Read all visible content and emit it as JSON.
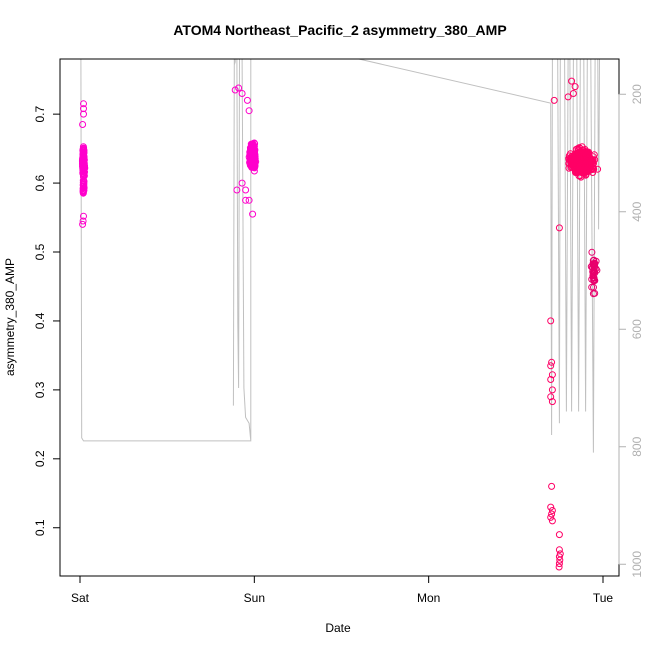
{
  "chart_data": {
    "type": "scatter",
    "title": "ATOM4 Northeast_Pacific_2 asymmetry_380_AMP",
    "xlabel": "Date",
    "ylabel": "asymmetry_380_AMP",
    "x_ticks": [
      "Sat",
      "Sun",
      "Mon",
      "Tue"
    ],
    "x_range_days": [
      0,
      3
    ],
    "y_ticks": [
      "0.1",
      "0.2",
      "0.3",
      "0.4",
      "0.5",
      "0.6",
      "0.7"
    ],
    "ylim": [
      0.03,
      0.78
    ],
    "y2_ticks": [
      "200",
      "400",
      "600",
      "800",
      "1000"
    ],
    "y2lim": [
      1020,
      140
    ],
    "y2_reversed": true,
    "grid": false,
    "colors": {
      "early_points": "#ff00cc",
      "late_points": "#ff0066",
      "outlier_points": "#e8006c",
      "depth_line": "#c0c0c0",
      "axis": "#000000",
      "right_axis": "#b0b0b0"
    },
    "series": [
      {
        "clusters": [
          {
            "x_center": 0.02,
            "x_spread": 0.012,
            "y_center": 0.63,
            "y_spread": 0.035,
            "count": 160,
            "color_key": "early_points"
          },
          {
            "x_center": 0.02,
            "x_spread": 0.008,
            "y_center": 0.595,
            "y_spread": 0.025,
            "count": 25,
            "color_key": "early_points"
          },
          {
            "x_center": 0.99,
            "x_spread": 0.03,
            "y_center": 0.64,
            "y_spread": 0.03,
            "count": 400,
            "color_key": "early_points"
          },
          {
            "x_center": 2.88,
            "x_spread": 0.12,
            "y_center": 0.63,
            "y_spread": 0.03,
            "count": 800,
            "color_key": "late_points"
          },
          {
            "x_center": 2.95,
            "x_spread": 0.03,
            "y_center": 0.47,
            "y_spread": 0.05,
            "count": 40,
            "color_key": "outlier_points"
          }
        ],
        "points": [
          {
            "x": 0.02,
            "y": 0.715
          },
          {
            "x": 0.02,
            "y": 0.708
          },
          {
            "x": 0.02,
            "y": 0.7
          },
          {
            "x": 0.015,
            "y": 0.685
          },
          {
            "x": 0.015,
            "y": 0.54
          },
          {
            "x": 0.018,
            "y": 0.545
          },
          {
            "x": 0.02,
            "y": 0.552
          },
          {
            "x": 0.89,
            "y": 0.735
          },
          {
            "x": 0.91,
            "y": 0.738
          },
          {
            "x": 0.93,
            "y": 0.73
          },
          {
            "x": 0.96,
            "y": 0.72
          },
          {
            "x": 0.97,
            "y": 0.705
          },
          {
            "x": 0.95,
            "y": 0.59
          },
          {
            "x": 0.97,
            "y": 0.575
          },
          {
            "x": 0.95,
            "y": 0.575
          },
          {
            "x": 0.99,
            "y": 0.555
          },
          {
            "x": 0.9,
            "y": 0.59
          },
          {
            "x": 0.93,
            "y": 0.6
          },
          {
            "x": 2.7,
            "y": 0.4
          },
          {
            "x": 2.705,
            "y": 0.34
          },
          {
            "x": 2.7,
            "y": 0.335
          },
          {
            "x": 2.71,
            "y": 0.322
          },
          {
            "x": 2.7,
            "y": 0.315
          },
          {
            "x": 2.71,
            "y": 0.3
          },
          {
            "x": 2.7,
            "y": 0.29
          },
          {
            "x": 2.71,
            "y": 0.283
          },
          {
            "x": 2.705,
            "y": 0.16
          },
          {
            "x": 2.7,
            "y": 0.13
          },
          {
            "x": 2.71,
            "y": 0.125
          },
          {
            "x": 2.705,
            "y": 0.12
          },
          {
            "x": 2.7,
            "y": 0.115
          },
          {
            "x": 2.71,
            "y": 0.11
          },
          {
            "x": 2.75,
            "y": 0.09
          },
          {
            "x": 2.75,
            "y": 0.068
          },
          {
            "x": 2.755,
            "y": 0.062
          },
          {
            "x": 2.75,
            "y": 0.058
          },
          {
            "x": 2.752,
            "y": 0.053
          },
          {
            "x": 2.75,
            "y": 0.048
          },
          {
            "x": 2.748,
            "y": 0.043
          },
          {
            "x": 2.75,
            "y": 0.535
          },
          {
            "x": 2.72,
            "y": 0.72
          },
          {
            "x": 2.8,
            "y": 0.725
          },
          {
            "x": 2.82,
            "y": 0.748
          },
          {
            "x": 2.84,
            "y": 0.74
          },
          {
            "x": 2.83,
            "y": 0.73
          }
        ]
      }
    ],
    "depth_line": [
      [
        0.0,
        140
      ],
      [
        0.005,
        140
      ],
      [
        0.01,
        785
      ],
      [
        0.02,
        790
      ],
      [
        0.5,
        790
      ],
      [
        0.85,
        790
      ],
      [
        0.98,
        790
      ],
      [
        0.98,
        140
      ],
      [
        0.89,
        140
      ],
      [
        0.89,
        145
      ],
      [
        0.885,
        150
      ],
      [
        0.88,
        730
      ],
      [
        0.885,
        140
      ],
      [
        0.9,
        140
      ],
      [
        0.905,
        590
      ],
      [
        0.91,
        700
      ],
      [
        0.915,
        140
      ],
      [
        0.93,
        140
      ],
      [
        0.94,
        700
      ],
      [
        0.95,
        750
      ],
      [
        0.97,
        760
      ],
      [
        0.98,
        790
      ],
      [
        0.98,
        140
      ],
      [
        1.6,
        140
      ],
      [
        2.7,
        215
      ],
      [
        2.7,
        215
      ],
      [
        2.705,
        780
      ],
      [
        2.71,
        140
      ],
      [
        2.74,
        140
      ],
      [
        2.75,
        760
      ],
      [
        2.755,
        140
      ],
      [
        2.78,
        140
      ],
      [
        2.79,
        740
      ],
      [
        2.8,
        140
      ],
      [
        2.81,
        140
      ],
      [
        2.82,
        740
      ],
      [
        2.83,
        140
      ],
      [
        2.85,
        140
      ],
      [
        2.86,
        740
      ],
      [
        2.87,
        140
      ],
      [
        2.89,
        140
      ],
      [
        2.9,
        740
      ],
      [
        2.91,
        140
      ],
      [
        2.93,
        140
      ],
      [
        2.945,
        810
      ],
      [
        2.955,
        140
      ],
      [
        2.97,
        140
      ],
      [
        2.975,
        430
      ],
      [
        2.98,
        140
      ],
      [
        2.99,
        140
      ]
    ]
  }
}
